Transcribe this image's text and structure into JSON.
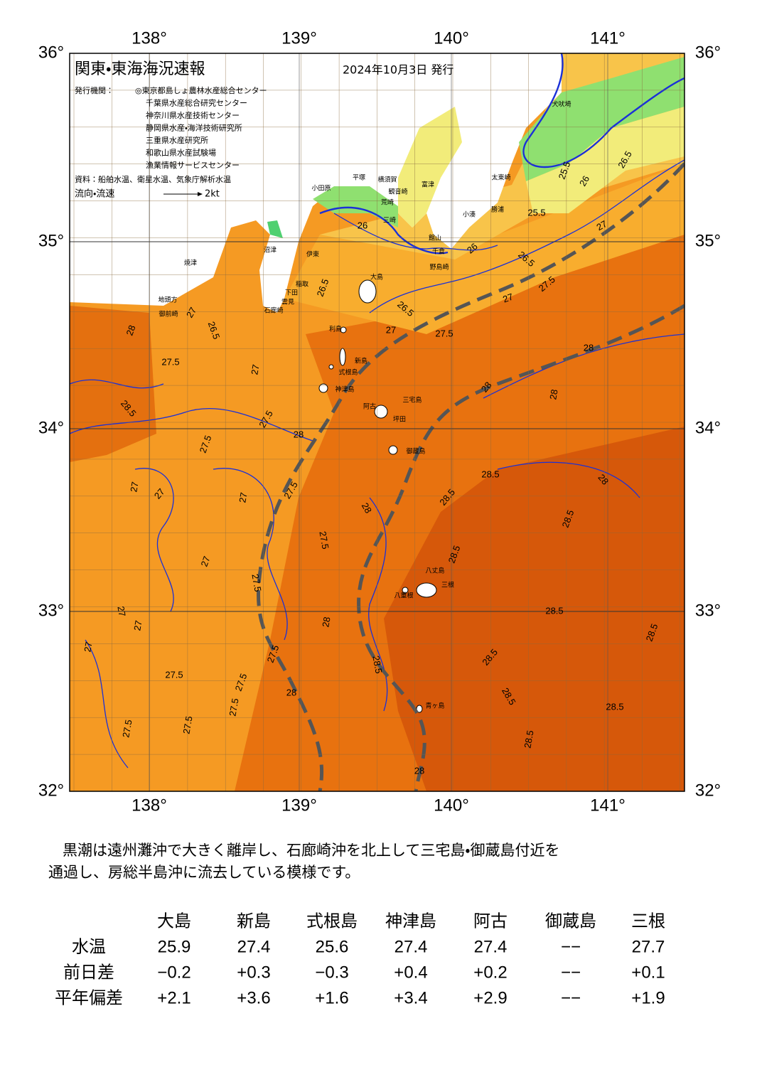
{
  "map": {
    "title": "関東・東海海況速報",
    "date": "2024年10月3日 発行",
    "issuer_label": "発行機関：",
    "issuers": [
      "◎東京都島しょ農林水産総合センター",
      "千葉県水産総合研究センター",
      "神奈川県水産技術センター",
      "静岡県水産・海洋技術研究所",
      "三重県水産研究所",
      "和歌山県水産試験場",
      "漁業情報サービスセンター"
    ],
    "source": "資料：船舶水温、衛星水温、気象庁解析水温",
    "flow_legend": "流向・流速",
    "flow_scale": "2kt",
    "lat_labels": [
      "36°",
      "35°",
      "34°",
      "33°",
      "32°"
    ],
    "lon_labels": [
      "138°",
      "139°",
      "140°",
      "141°"
    ],
    "places": [
      "犬吠埼",
      "太東崎",
      "勝浦",
      "小湊",
      "富津",
      "館山",
      "千倉",
      "野島崎",
      "観音崎",
      "横須賀",
      "平塚",
      "小田原",
      "荒崎",
      "三崎",
      "伊東",
      "沼津",
      "焼津",
      "稲取",
      "下田",
      "雲見",
      "石廊崎",
      "地頭方",
      "御前崎",
      "大島",
      "利島",
      "新島",
      "式根島",
      "神津島",
      "三宅島",
      "阿古",
      "坪田",
      "御蔵島",
      "八丈島",
      "三根",
      "八重根",
      "青ヶ島"
    ],
    "contour_labels": [
      "25.5",
      "26.5",
      "26",
      "25.5",
      "27",
      "26",
      "26",
      "26.5",
      "27.5",
      "27",
      "26.5",
      "26.5",
      "27",
      "27.5",
      "28",
      "28",
      "26.5",
      "27",
      "27.5",
      "27",
      "28.5",
      "27.5",
      "28",
      "27.5",
      "28",
      "28",
      "27",
      "27",
      "27",
      "27.5",
      "28",
      "28.5",
      "28.5",
      "28",
      "28.5",
      "27.5",
      "28.5",
      "27",
      "27.5",
      "27",
      "27",
      "28.5",
      "28",
      "27",
      "27.5",
      "28.5",
      "28.5",
      "28.5",
      "27.5",
      "27.5",
      "28",
      "28.5",
      "27.5",
      "27.5",
      "27.5",
      "28.5",
      "28.5",
      "28"
    ]
  },
  "summary": [
    "黒潮は遠州灘沖で大きく離岸し、石廊崎沖を北上して三宅島・御蔵島付近を",
    "通過し、房総半島沖に流去している模様です。"
  ],
  "table": {
    "columns": [
      "大島",
      "新島",
      "式根島",
      "神津島",
      "阿古",
      "御蔵島",
      "三根"
    ],
    "rows": [
      {
        "label": "水温",
        "values": [
          "25.9",
          "27.4",
          "25.6",
          "27.4",
          "27.4",
          "−−",
          "27.7"
        ]
      },
      {
        "label": "前日差",
        "values": [
          "−0.2",
          "+0.3",
          "−0.3",
          "+0.4",
          "+0.2",
          "−−",
          "+0.1"
        ]
      },
      {
        "label": "平年偏差",
        "values": [
          "+2.1",
          "+3.6",
          "+1.6",
          "+3.4",
          "+2.9",
          "−−",
          "+1.9"
        ]
      }
    ]
  }
}
